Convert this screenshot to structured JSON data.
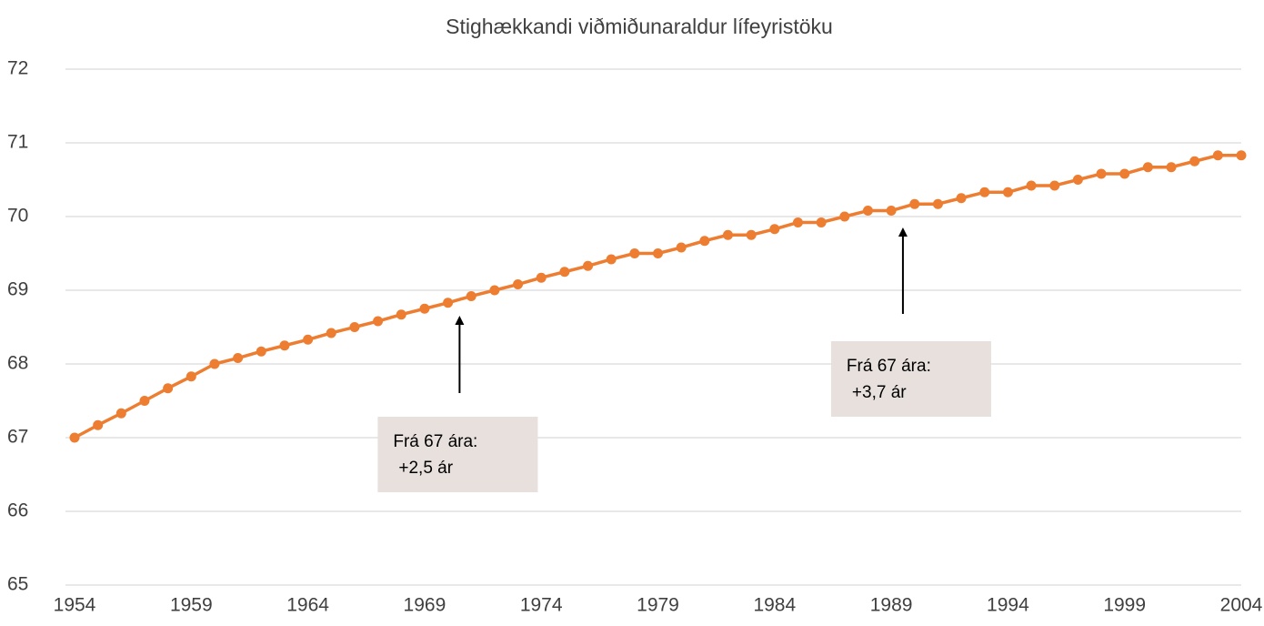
{
  "chart_data": {
    "type": "line",
    "title": "Stighækkandi viðmiðunaraldur lífeyristöku",
    "x": [
      1954,
      1955,
      1956,
      1957,
      1958,
      1959,
      1960,
      1961,
      1962,
      1963,
      1964,
      1965,
      1966,
      1967,
      1968,
      1969,
      1970,
      1971,
      1972,
      1973,
      1974,
      1975,
      1976,
      1977,
      1978,
      1979,
      1980,
      1981,
      1982,
      1983,
      1984,
      1985,
      1986,
      1987,
      1988,
      1989,
      1990,
      1991,
      1992,
      1993,
      1994,
      1995,
      1996,
      1997,
      1998,
      1999,
      2000,
      2001,
      2002,
      2003,
      2004
    ],
    "series": [
      {
        "color": "#ED7D31",
        "values": [
          67.0,
          67.17,
          67.33,
          67.5,
          67.67,
          67.83,
          68.0,
          68.08,
          68.17,
          68.25,
          68.33,
          68.42,
          68.5,
          68.58,
          68.67,
          68.75,
          68.83,
          68.92,
          69.0,
          69.08,
          69.17,
          69.25,
          69.33,
          69.42,
          69.5,
          69.5,
          69.58,
          69.67,
          69.75,
          69.75,
          69.83,
          69.92,
          69.92,
          70.0,
          70.08,
          70.08,
          70.17,
          70.17,
          70.25,
          70.33,
          70.33,
          70.42,
          70.42,
          70.5,
          70.58,
          70.58,
          70.67,
          70.67,
          70.75,
          70.83,
          70.83
        ]
      }
    ],
    "xlim": [
      1954,
      2004
    ],
    "xticks": [
      1954,
      1959,
      1964,
      1969,
      1974,
      1979,
      1984,
      1989,
      1994,
      1999,
      2004
    ],
    "ylim": [
      65,
      72
    ],
    "yticks": [
      65,
      66,
      67,
      68,
      69,
      70,
      71,
      72
    ],
    "grid": true,
    "annotations": [
      {
        "lines": [
          "Frá 67 ára:",
          "+2,5 ár"
        ],
        "x": 1970.5
      },
      {
        "lines": [
          "Frá 67 ára:",
          "+3,7 ár"
        ],
        "x": 1989.5
      }
    ]
  }
}
